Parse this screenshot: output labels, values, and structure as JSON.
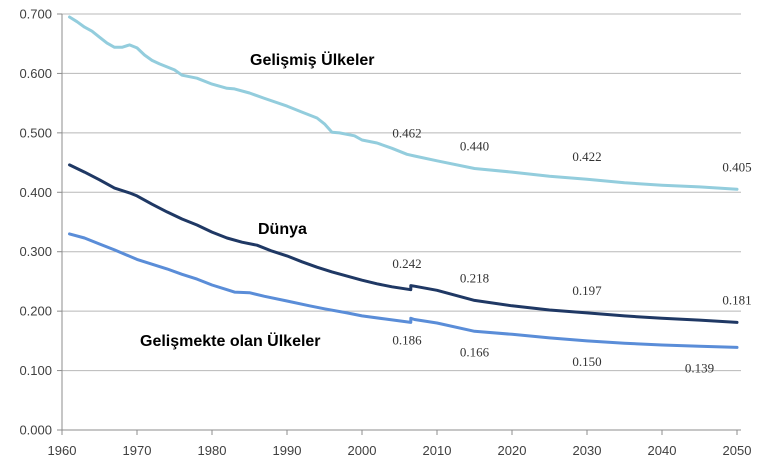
{
  "chart_data": {
    "type": "line",
    "title": "",
    "xlabel": "",
    "ylabel": "",
    "xlim": [
      1960,
      2050
    ],
    "ylim": [
      0,
      0.7
    ],
    "grid": true,
    "x_ticks": [
      "1960",
      "1970",
      "1980",
      "1990",
      "2000",
      "2010",
      "2020",
      "2030",
      "2040",
      "2050"
    ],
    "y_ticks": [
      "0.000",
      "0.100",
      "0.200",
      "0.300",
      "0.400",
      "0.500",
      "0.600",
      "0.700"
    ],
    "series": [
      {
        "name": "Gelişmiş Ülkeler",
        "color": "#93CDDD",
        "data_label_placement": "above",
        "points": [
          [
            1961,
            0.695
          ],
          [
            1962,
            0.687
          ],
          [
            1963,
            0.678
          ],
          [
            1964,
            0.671
          ],
          [
            1965,
            0.661
          ],
          [
            1966,
            0.651
          ],
          [
            1967,
            0.644
          ],
          [
            1968,
            0.644
          ],
          [
            1969,
            0.648
          ],
          [
            1970,
            0.643
          ],
          [
            1971,
            0.631
          ],
          [
            1972,
            0.622
          ],
          [
            1973,
            0.616
          ],
          [
            1975,
            0.606
          ],
          [
            1976,
            0.597
          ],
          [
            1978,
            0.592
          ],
          [
            1980,
            0.582
          ],
          [
            1982,
            0.575
          ],
          [
            1983,
            0.574
          ],
          [
            1985,
            0.567
          ],
          [
            1987,
            0.558
          ],
          [
            1990,
            0.545
          ],
          [
            1992,
            0.535
          ],
          [
            1994,
            0.525
          ],
          [
            1995,
            0.515
          ],
          [
            1996,
            0.501
          ],
          [
            1997,
            0.5
          ],
          [
            1999,
            0.495
          ],
          [
            2000,
            0.488
          ],
          [
            2002,
            0.483
          ],
          [
            2004,
            0.474
          ],
          [
            2006,
            0.464
          ],
          [
            2007,
            0.461
          ],
          [
            2010,
            0.453
          ],
          [
            2015,
            0.44
          ],
          [
            2020,
            0.434
          ],
          [
            2025,
            0.427
          ],
          [
            2030,
            0.422
          ],
          [
            2035,
            0.416
          ],
          [
            2040,
            0.412
          ],
          [
            2045,
            0.409
          ],
          [
            2050,
            0.405
          ]
        ],
        "data_labels": [
          {
            "x": 2006,
            "text": "0.462"
          },
          {
            "x": 2015,
            "text": "0.440"
          },
          {
            "x": 2030,
            "text": "0.422"
          },
          {
            "x": 2050,
            "text": "0.405"
          }
        ]
      },
      {
        "name": "Dünya",
        "color": "#1F3864",
        "data_label_placement": "above",
        "points": [
          [
            1961,
            0.446
          ],
          [
            1963,
            0.434
          ],
          [
            1965,
            0.421
          ],
          [
            1967,
            0.407
          ],
          [
            1969,
            0.399
          ],
          [
            1970,
            0.394
          ],
          [
            1972,
            0.38
          ],
          [
            1974,
            0.367
          ],
          [
            1976,
            0.355
          ],
          [
            1978,
            0.345
          ],
          [
            1980,
            0.333
          ],
          [
            1982,
            0.323
          ],
          [
            1984,
            0.316
          ],
          [
            1986,
            0.311
          ],
          [
            1988,
            0.301
          ],
          [
            1990,
            0.293
          ],
          [
            1992,
            0.283
          ],
          [
            1994,
            0.274
          ],
          [
            1996,
            0.266
          ],
          [
            1998,
            0.259
          ],
          [
            2000,
            0.252
          ],
          [
            2002,
            0.246
          ],
          [
            2004,
            0.241
          ],
          [
            2006.5,
            0.236
          ],
          [
            2006.5,
            0.243
          ],
          [
            2007,
            0.242
          ],
          [
            2010,
            0.235
          ],
          [
            2015,
            0.218
          ],
          [
            2020,
            0.209
          ],
          [
            2025,
            0.202
          ],
          [
            2030,
            0.197
          ],
          [
            2035,
            0.192
          ],
          [
            2040,
            0.188
          ],
          [
            2045,
            0.185
          ],
          [
            2050,
            0.181
          ]
        ],
        "data_labels": [
          {
            "x": 2006,
            "text": "0.242"
          },
          {
            "x": 2015,
            "text": "0.218"
          },
          {
            "x": 2030,
            "text": "0.197"
          },
          {
            "x": 2050,
            "text": "0.181"
          }
        ]
      },
      {
        "name": "Gelişmekte olan Ülkeler",
        "color": "#5A8DD8",
        "data_label_placement": "below",
        "points": [
          [
            1961,
            0.33
          ],
          [
            1963,
            0.323
          ],
          [
            1965,
            0.313
          ],
          [
            1967,
            0.303
          ],
          [
            1970,
            0.287
          ],
          [
            1972,
            0.279
          ],
          [
            1974,
            0.271
          ],
          [
            1976,
            0.262
          ],
          [
            1978,
            0.254
          ],
          [
            1980,
            0.244
          ],
          [
            1982,
            0.236
          ],
          [
            1983,
            0.232
          ],
          [
            1985,
            0.231
          ],
          [
            1987,
            0.225
          ],
          [
            1990,
            0.217
          ],
          [
            1993,
            0.209
          ],
          [
            1995,
            0.204
          ],
          [
            1998,
            0.197
          ],
          [
            2000,
            0.192
          ],
          [
            2003,
            0.187
          ],
          [
            2006.5,
            0.181
          ],
          [
            2006.5,
            0.188
          ],
          [
            2007,
            0.186
          ],
          [
            2010,
            0.18
          ],
          [
            2015,
            0.166
          ],
          [
            2020,
            0.161
          ],
          [
            2025,
            0.155
          ],
          [
            2030,
            0.15
          ],
          [
            2035,
            0.146
          ],
          [
            2040,
            0.143
          ],
          [
            2045,
            0.141
          ],
          [
            2050,
            0.139
          ]
        ],
        "data_labels": [
          {
            "x": 2006,
            "text": "0.186"
          },
          {
            "x": 2015,
            "text": "0.166"
          },
          {
            "x": 2030,
            "text": "0.150"
          },
          {
            "x": 2045,
            "text": "0.139"
          }
        ]
      }
    ]
  }
}
